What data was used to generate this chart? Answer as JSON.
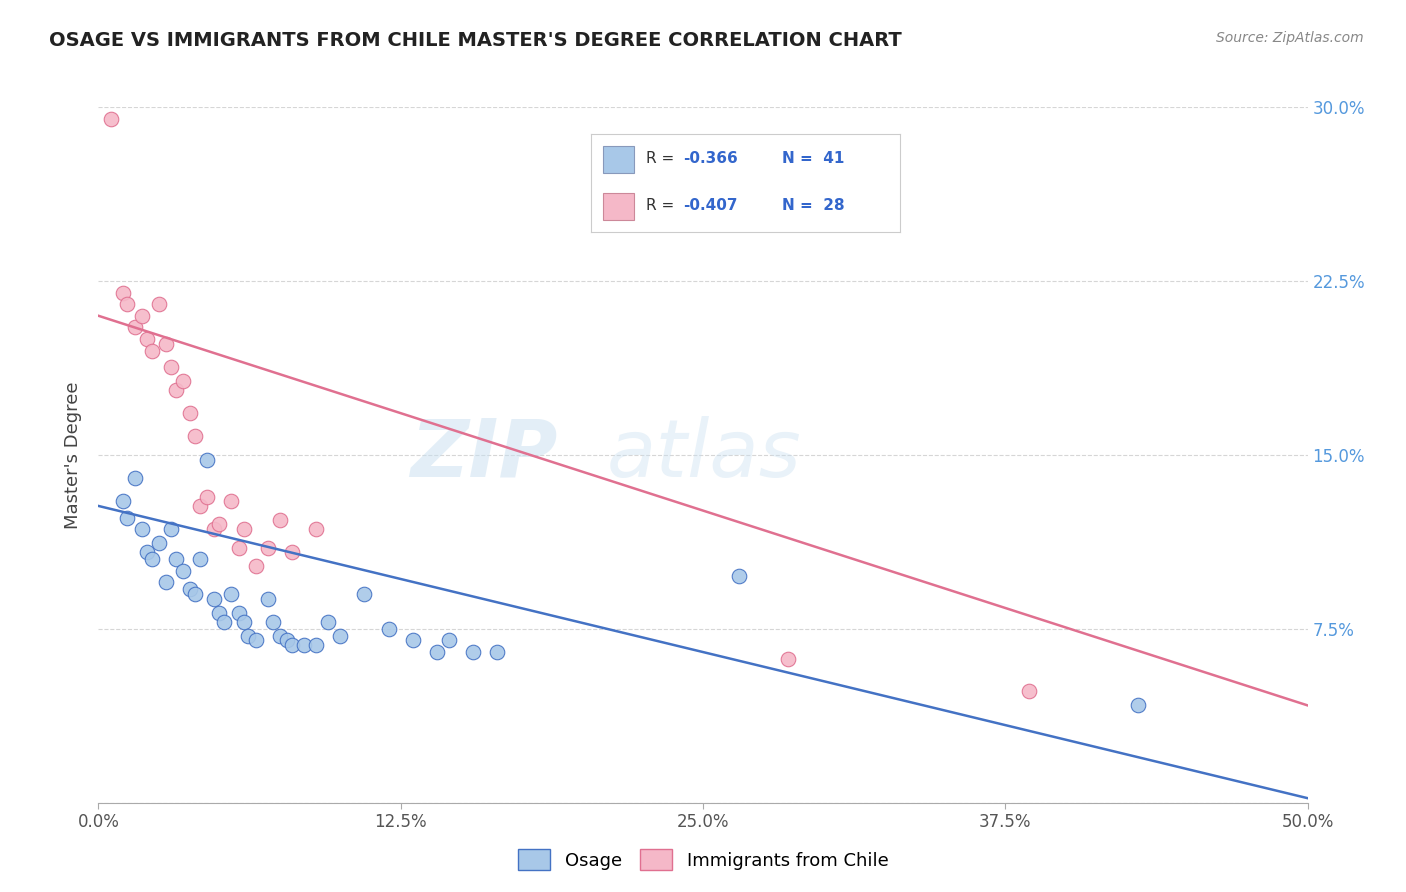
{
  "title": "OSAGE VS IMMIGRANTS FROM CHILE MASTER'S DEGREE CORRELATION CHART",
  "source_text": "Source: ZipAtlas.com",
  "ylabel": "Master's Degree",
  "xlim": [
    0.0,
    0.5
  ],
  "ylim": [
    0.0,
    0.3
  ],
  "xtick_labels": [
    "0.0%",
    "",
    "12.5%",
    "",
    "25.0%",
    "",
    "37.5%",
    "",
    "50.0%"
  ],
  "xtick_vals": [
    0.0,
    0.0625,
    0.125,
    0.1875,
    0.25,
    0.3125,
    0.375,
    0.4375,
    0.5
  ],
  "xtick_major_labels": [
    "0.0%",
    "12.5%",
    "25.0%",
    "37.5%",
    "50.0%"
  ],
  "xtick_major_vals": [
    0.0,
    0.125,
    0.25,
    0.375,
    0.5
  ],
  "ytick_labels_right": [
    "",
    "7.5%",
    "15.0%",
    "22.5%",
    "30.0%"
  ],
  "ytick_vals": [
    0.0,
    0.075,
    0.15,
    0.225,
    0.3
  ],
  "legend_bottom_labels": [
    "Osage",
    "Immigrants from Chile"
  ],
  "color_blue": "#a8c8e8",
  "color_pink": "#f5b8c8",
  "line_blue": "#4472c4",
  "line_pink": "#e07090",
  "blue_scatter": [
    [
      0.01,
      0.13
    ],
    [
      0.012,
      0.123
    ],
    [
      0.015,
      0.14
    ],
    [
      0.018,
      0.118
    ],
    [
      0.02,
      0.108
    ],
    [
      0.022,
      0.105
    ],
    [
      0.025,
      0.112
    ],
    [
      0.028,
      0.095
    ],
    [
      0.03,
      0.118
    ],
    [
      0.032,
      0.105
    ],
    [
      0.035,
      0.1
    ],
    [
      0.038,
      0.092
    ],
    [
      0.04,
      0.09
    ],
    [
      0.042,
      0.105
    ],
    [
      0.045,
      0.148
    ],
    [
      0.048,
      0.088
    ],
    [
      0.05,
      0.082
    ],
    [
      0.052,
      0.078
    ],
    [
      0.055,
      0.09
    ],
    [
      0.058,
      0.082
    ],
    [
      0.06,
      0.078
    ],
    [
      0.062,
      0.072
    ],
    [
      0.065,
      0.07
    ],
    [
      0.07,
      0.088
    ],
    [
      0.072,
      0.078
    ],
    [
      0.075,
      0.072
    ],
    [
      0.078,
      0.07
    ],
    [
      0.08,
      0.068
    ],
    [
      0.085,
      0.068
    ],
    [
      0.09,
      0.068
    ],
    [
      0.095,
      0.078
    ],
    [
      0.1,
      0.072
    ],
    [
      0.11,
      0.09
    ],
    [
      0.12,
      0.075
    ],
    [
      0.13,
      0.07
    ],
    [
      0.14,
      0.065
    ],
    [
      0.145,
      0.07
    ],
    [
      0.155,
      0.065
    ],
    [
      0.165,
      0.065
    ],
    [
      0.265,
      0.098
    ],
    [
      0.43,
      0.042
    ]
  ],
  "pink_scatter": [
    [
      0.005,
      0.295
    ],
    [
      0.01,
      0.22
    ],
    [
      0.012,
      0.215
    ],
    [
      0.015,
      0.205
    ],
    [
      0.018,
      0.21
    ],
    [
      0.02,
      0.2
    ],
    [
      0.022,
      0.195
    ],
    [
      0.025,
      0.215
    ],
    [
      0.028,
      0.198
    ],
    [
      0.03,
      0.188
    ],
    [
      0.032,
      0.178
    ],
    [
      0.035,
      0.182
    ],
    [
      0.038,
      0.168
    ],
    [
      0.04,
      0.158
    ],
    [
      0.042,
      0.128
    ],
    [
      0.045,
      0.132
    ],
    [
      0.048,
      0.118
    ],
    [
      0.05,
      0.12
    ],
    [
      0.055,
      0.13
    ],
    [
      0.058,
      0.11
    ],
    [
      0.06,
      0.118
    ],
    [
      0.065,
      0.102
    ],
    [
      0.07,
      0.11
    ],
    [
      0.075,
      0.122
    ],
    [
      0.08,
      0.108
    ],
    [
      0.09,
      0.118
    ],
    [
      0.285,
      0.062
    ],
    [
      0.385,
      0.048
    ]
  ],
  "blue_line_x": [
    0.0,
    0.5
  ],
  "blue_line_y": [
    0.128,
    0.002
  ],
  "pink_line_x": [
    0.0,
    0.5
  ],
  "pink_line_y": [
    0.21,
    0.042
  ]
}
